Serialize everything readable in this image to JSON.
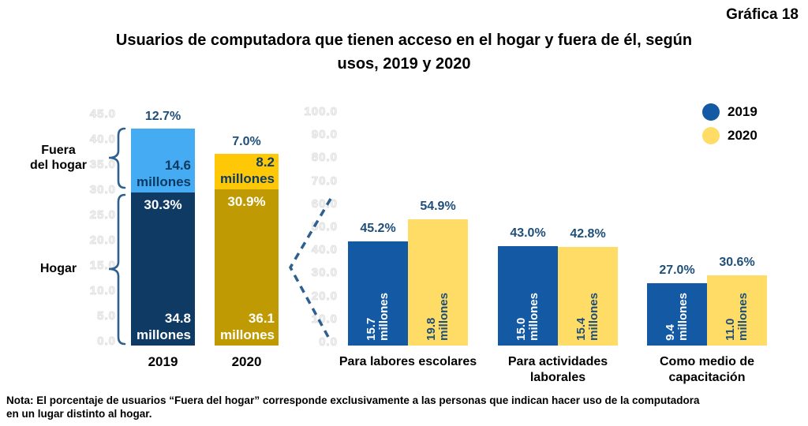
{
  "header": {
    "graph_label": "Gráfica 18",
    "title": "Usuarios de computadora que tienen acceso en el hogar y fuera de él, según\nusos, 2019 y 2020"
  },
  "colors": {
    "home_2019": "#0E3A63",
    "fuera_2019": "#45ABF3",
    "home_2020": "#C09A02",
    "fuera_2020": "#FFC807",
    "bar_2019": "#1459A3",
    "bar_2020": "#FFDC66",
    "pct_label": "#1F4E79",
    "brace": "#2E5F8F",
    "ghost_tick": "#E0E0E0"
  },
  "legend": {
    "items": [
      {
        "label": "2019",
        "color_key": "bar_2019"
      },
      {
        "label": "2020",
        "color_key": "bar_2020"
      }
    ]
  },
  "chart_data": [
    {
      "id": "stacked",
      "type": "bar",
      "variant": "stacked",
      "categories": [
        "2019",
        "2020"
      ],
      "value_word": "millones",
      "axis": {
        "min": 0,
        "max": 45,
        "ticks": [
          45.0,
          40.0,
          35.0,
          30.0,
          25.0,
          20.0,
          15.0,
          10.0,
          5.0,
          0.0
        ],
        "ghost": true
      },
      "bars": [
        {
          "category": "2019",
          "segments": [
            {
              "name": "Hogar",
              "pct": 30.3,
              "millones": 34.8
            },
            {
              "name": "Fuera del hogar",
              "pct": 12.7,
              "millones": 14.6
            }
          ]
        },
        {
          "category": "2020",
          "segments": [
            {
              "name": "Hogar",
              "pct": 30.9,
              "millones": 36.1
            },
            {
              "name": "Fuera del hogar",
              "pct": 7.0,
              "millones": 8.2
            }
          ]
        }
      ],
      "row_labels": [
        {
          "text": "Fuera\ndel hogar"
        },
        {
          "text": "Hogar"
        }
      ]
    },
    {
      "id": "grouped",
      "type": "bar",
      "variant": "grouped",
      "axis": {
        "min": 0,
        "max": 100,
        "ticks": [
          100.0,
          90.0,
          80.0,
          70.0,
          60.0,
          50.0,
          40.0,
          30.0,
          20.0,
          10.0,
          0.0
        ],
        "ghost": true
      },
      "categories": [
        {
          "lines": [
            "Para labores escolares"
          ]
        },
        {
          "lines": [
            "Para actividades",
            "laborales"
          ]
        },
        {
          "lines": [
            "Como medio de",
            "capacitación"
          ]
        }
      ],
      "series": [
        {
          "name": "2019",
          "pct": [
            45.2,
            43.0,
            27.0
          ],
          "millones": [
            15.7,
            15.0,
            9.4
          ]
        },
        {
          "name": "2020",
          "pct": [
            54.9,
            42.8,
            30.6
          ],
          "millones": [
            19.8,
            15.4,
            11.0
          ]
        }
      ]
    }
  ],
  "note": "Nota: El porcentaje de usuarios “Fuera del hogar” corresponde exclusivamente a las personas que indican hacer uso de la computadora\nen un lugar distinto al hogar."
}
